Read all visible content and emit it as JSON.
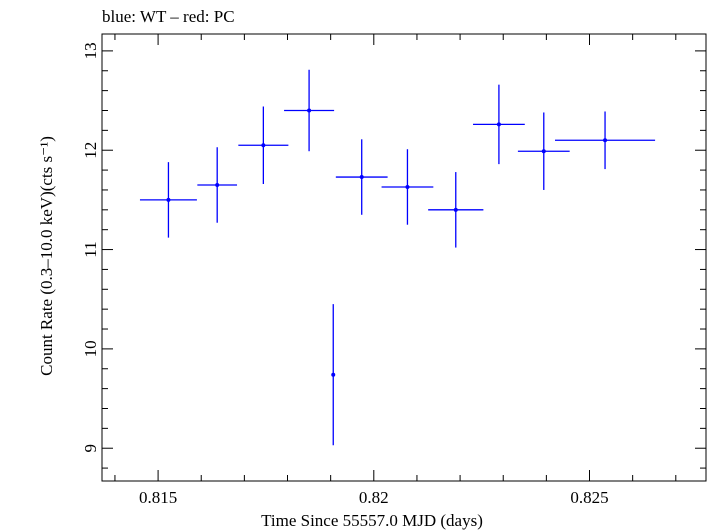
{
  "chart_data": {
    "type": "scatter",
    "title": "blue: WT – red: PC",
    "xlabel": "Time Since 55557.0 MJD (days)",
    "ylabel": "Count Rate (0.3–10.0 keV)(cts s⁻¹)",
    "xlim": [
      0.8137,
      0.8277
    ],
    "ylim": [
      8.67,
      13.17
    ],
    "x_ticks": [
      0.815,
      0.82,
      0.825
    ],
    "x_tick_labels": [
      "0.815",
      "0.82",
      "0.825"
    ],
    "y_ticks": [
      9,
      10,
      11,
      12,
      13
    ],
    "y_tick_labels": [
      "9",
      "10",
      "11",
      "12",
      "13"
    ],
    "grid": false,
    "legend": "none",
    "series": [
      {
        "color": "#0000ff",
        "points": [
          {
            "x": 0.81524,
            "xerr": 0.00066,
            "y": 11.5,
            "yerr": 0.38
          },
          {
            "x": 0.81637,
            "xerr": 0.00046,
            "y": 11.65,
            "yerr": 0.38
          },
          {
            "x": 0.81744,
            "xerr": 0.00058,
            "y": 12.05,
            "yerr": 0.39
          },
          {
            "x": 0.8185,
            "xerr": 0.00058,
            "y": 12.4,
            "yerr": 0.41
          },
          {
            "x": 0.81906,
            "xerr": 2e-05,
            "y": 9.74,
            "yerr": 0.71
          },
          {
            "x": 0.81972,
            "xerr": 0.0006,
            "y": 11.73,
            "yerr": 0.38
          },
          {
            "x": 0.82078,
            "xerr": 0.0006,
            "y": 11.63,
            "yerr": 0.38
          },
          {
            "x": 0.8219,
            "xerr": 0.00064,
            "y": 11.4,
            "yerr": 0.38
          },
          {
            "x": 0.8229,
            "xerr": 0.0006,
            "y": 12.26,
            "yerr": 0.4
          },
          {
            "x": 0.82394,
            "xerr": 0.0006,
            "y": 11.99,
            "yerr": 0.39
          },
          {
            "x": 0.82536,
            "xerr": 0.00116,
            "y": 12.1,
            "yerr": 0.29
          }
        ]
      }
    ]
  }
}
